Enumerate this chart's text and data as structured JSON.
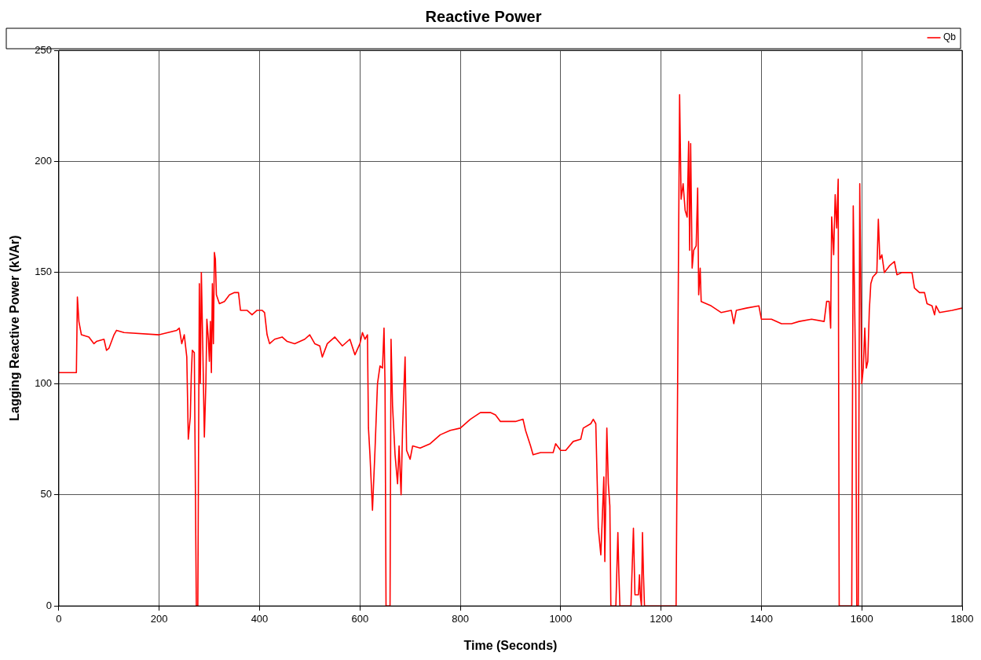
{
  "chart_data": {
    "type": "line",
    "title": "Reactive Power",
    "xlabel": "Time (Seconds)",
    "ylabel": "Lagging Reactive Power (kVAr)",
    "xlim": [
      0,
      1800
    ],
    "xticks": [
      0,
      200,
      400,
      600,
      800,
      1000,
      1200,
      1400,
      1600,
      1800
    ],
    "ylim": [
      0,
      250
    ],
    "yticks": [
      0,
      50,
      100,
      150,
      200,
      250
    ],
    "grid": true,
    "legend": "top right",
    "marker": "none",
    "line_style": "solid",
    "series": [
      {
        "name": "Qb",
        "color": "#ff0000",
        "x": [
          0,
          35,
          37,
          40,
          45,
          60,
          70,
          75,
          90,
          95,
          100,
          110,
          115,
          130,
          200,
          235,
          240,
          245,
          250,
          255,
          258,
          262,
          264,
          266,
          270,
          274,
          277,
          280,
          282,
          284,
          287,
          290,
          293,
          295,
          298,
          300,
          302,
          304,
          306,
          308,
          310,
          312,
          314,
          320,
          330,
          340,
          350,
          358,
          362,
          375,
          385,
          395,
          405,
          410,
          415,
          420,
          430,
          445,
          455,
          470,
          490,
          500,
          510,
          520,
          525,
          535,
          550,
          565,
          580,
          590,
          600,
          605,
          610,
          615,
          617,
          620,
          625,
          630,
          635,
          640,
          645,
          648,
          650,
          652,
          660,
          662,
          665,
          670,
          675,
          678,
          682,
          685,
          688,
          690,
          693,
          700,
          705,
          720,
          740,
          760,
          780,
          800,
          820,
          840,
          860,
          870,
          880,
          910,
          925,
          930,
          940,
          945,
          960,
          985,
          990,
          1000,
          1010,
          1025,
          1040,
          1045,
          1060,
          1065,
          1070,
          1075,
          1080,
          1083,
          1086,
          1088,
          1092,
          1095,
          1098,
          1100,
          1110,
          1114,
          1116,
          1118,
          1140,
          1145,
          1148,
          1155,
          1157,
          1159,
          1161,
          1163,
          1165,
          1167,
          1230,
          1237,
          1240,
          1244,
          1248,
          1252,
          1255,
          1257,
          1259,
          1262,
          1265,
          1270,
          1273,
          1275,
          1278,
          1280,
          1300,
          1320,
          1340,
          1345,
          1350,
          1370,
          1395,
          1400,
          1420,
          1440,
          1460,
          1475,
          1500,
          1525,
          1530,
          1535,
          1538,
          1540,
          1544,
          1547,
          1550,
          1553,
          1555,
          1580,
          1583,
          1588,
          1590,
          1593,
          1596,
          1600,
          1603,
          1606,
          1609,
          1612,
          1615,
          1618,
          1622,
          1630,
          1633,
          1636,
          1640,
          1645,
          1655,
          1665,
          1670,
          1680,
          1700,
          1705,
          1715,
          1725,
          1730,
          1740,
          1745,
          1748,
          1755,
          1780,
          1800
        ],
        "values": [
          105,
          105,
          139,
          128,
          122,
          121,
          118,
          119,
          120,
          115,
          116,
          122,
          124,
          123,
          122,
          124,
          125,
          118,
          122,
          112,
          75,
          85,
          104,
          115,
          114,
          0,
          0,
          145,
          100,
          150,
          115,
          76,
          100,
          129,
          120,
          110,
          128,
          105,
          145,
          118,
          159,
          156,
          140,
          136,
          137,
          140,
          141,
          141,
          133,
          133,
          131,
          133,
          133,
          132,
          122,
          118,
          120,
          121,
          119,
          118,
          120,
          122,
          118,
          117,
          112,
          118,
          121,
          117,
          120,
          113,
          118,
          123,
          120,
          122,
          80,
          68,
          43,
          70,
          100,
          108,
          107,
          125,
          100,
          0,
          0,
          120,
          90,
          68,
          55,
          72,
          50,
          80,
          100,
          112,
          70,
          66,
          72,
          71,
          73,
          77,
          79,
          80,
          84,
          87,
          87,
          86,
          83,
          83,
          84,
          79,
          72,
          68,
          69,
          69,
          73,
          70,
          70,
          74,
          75,
          80,
          82,
          84,
          82,
          35,
          23,
          40,
          58,
          20,
          80,
          55,
          45,
          0,
          0,
          33,
          14,
          0,
          0,
          35,
          5,
          5,
          14,
          4,
          0,
          33,
          14,
          0,
          0,
          230,
          183,
          190,
          178,
          175,
          209,
          160,
          208,
          152,
          160,
          162,
          188,
          140,
          152,
          137,
          135,
          132,
          133,
          127,
          133,
          134,
          135,
          129,
          129,
          127,
          127,
          128,
          129,
          128,
          137,
          137,
          125,
          175,
          158,
          185,
          170,
          192,
          0,
          0,
          180,
          100,
          0,
          0,
          190,
          100,
          107,
          125,
          107,
          110,
          133,
          145,
          148,
          150,
          174,
          156,
          158,
          150,
          153,
          155,
          149,
          150,
          150,
          143,
          141,
          141,
          136,
          135,
          131,
          135,
          132,
          133,
          134
        ]
      }
    ]
  }
}
